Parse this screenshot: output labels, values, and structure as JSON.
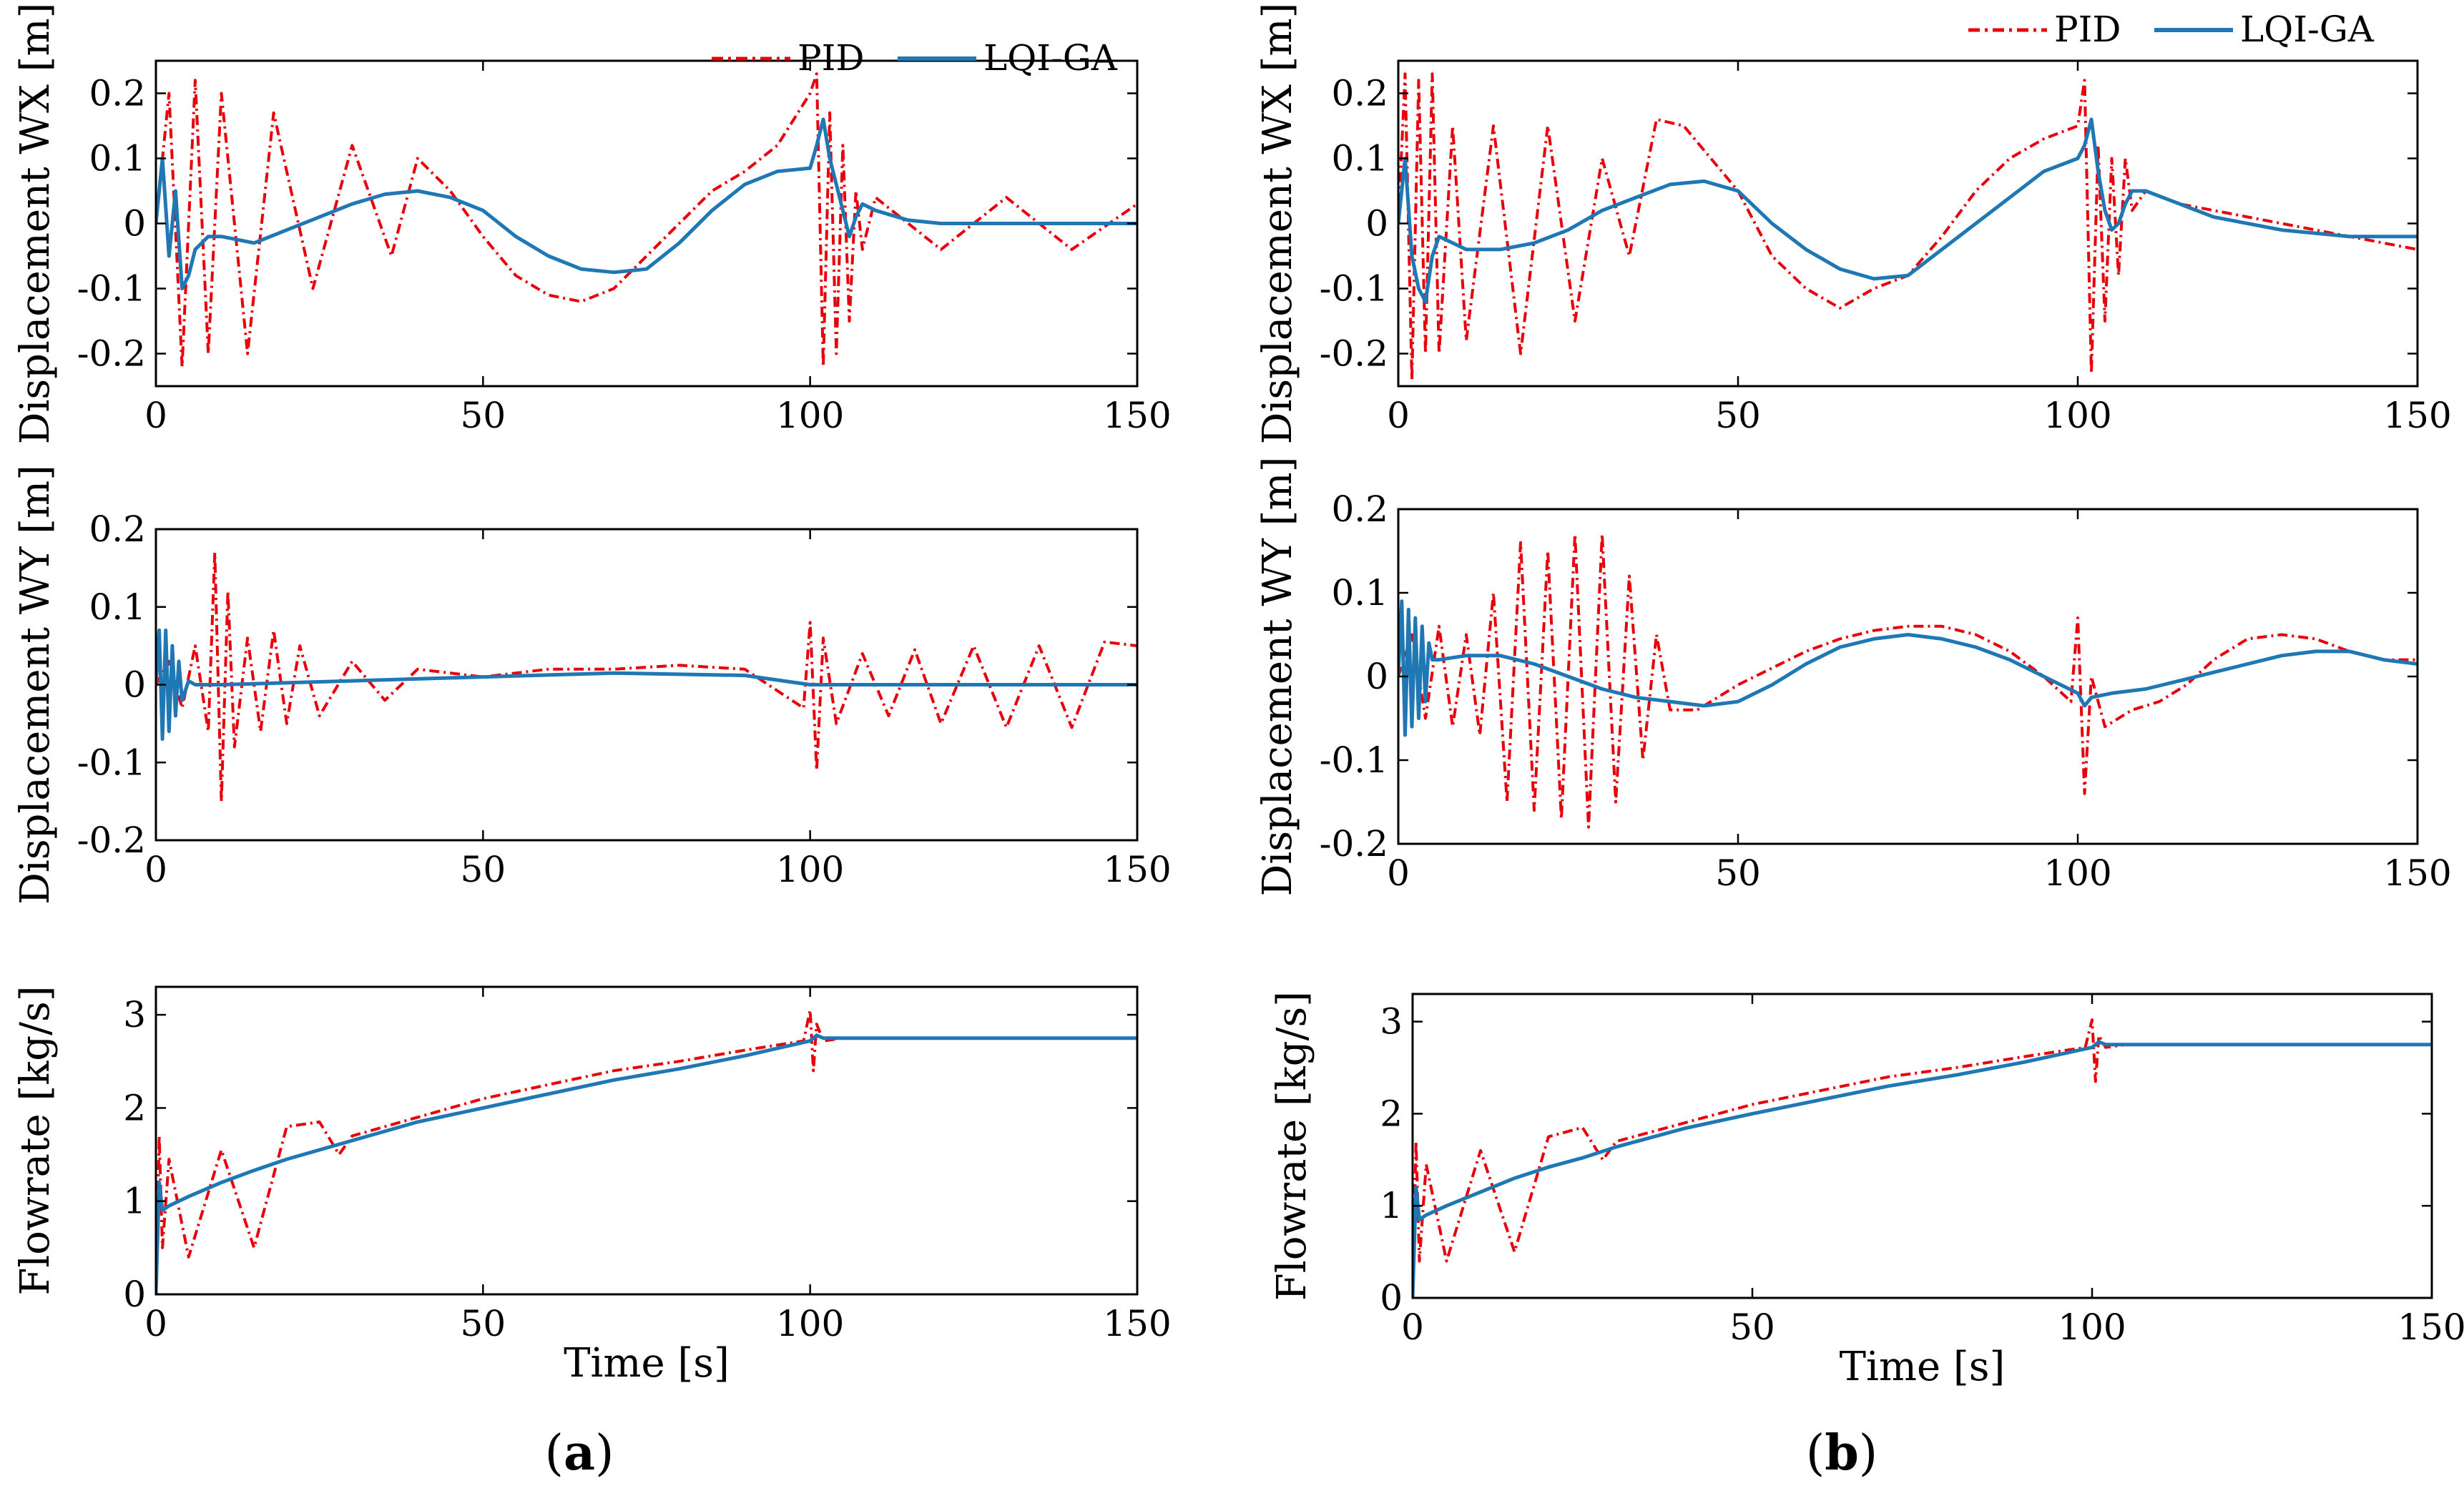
{
  "figure": {
    "panel_labels": [
      {
        "open": "(",
        "letter": "a",
        "close": ")"
      },
      {
        "open": "(",
        "letter": "b",
        "close": ")"
      }
    ],
    "legend": {
      "pid": "PID",
      "lqi": "LQI-GA"
    },
    "colors": {
      "pid": "#e8000b",
      "lqi": "#1f77b4",
      "axes": "#000000"
    }
  },
  "chart_data": [
    {
      "id": "a-wx",
      "type": "line",
      "panel": "a",
      "ylabel": "Displacement WX [m]",
      "xlabel": "",
      "xlim": [
        0,
        150
      ],
      "ylim": [
        -0.25,
        0.25
      ],
      "xticks": [
        "0",
        "50",
        "100",
        "150"
      ],
      "yticks": [
        "-0.2",
        "-0.1",
        "0",
        "0.1",
        "0.2"
      ],
      "series": [
        {
          "name": "PID",
          "style": "dashdot",
          "x": [
            0,
            2,
            4,
            6,
            8,
            10,
            14,
            18,
            24,
            30,
            36,
            40,
            45,
            50,
            55,
            60,
            65,
            70,
            75,
            80,
            85,
            90,
            95,
            100,
            101,
            102,
            103,
            104,
            105,
            106,
            107,
            108,
            110,
            120,
            130,
            140,
            150
          ],
          "y": [
            0,
            0.2,
            -0.22,
            0.22,
            -0.2,
            0.2,
            -0.2,
            0.17,
            -0.1,
            0.12,
            -0.05,
            0.1,
            0.05,
            -0.02,
            -0.08,
            -0.11,
            -0.12,
            -0.1,
            -0.05,
            0,
            0.05,
            0.08,
            0.12,
            0.2,
            0.23,
            -0.22,
            0.17,
            -0.2,
            0.12,
            -0.15,
            0.05,
            -0.04,
            0.04,
            -0.04,
            0.04,
            -0.04,
            0.03
          ]
        },
        {
          "name": "LQI-GA",
          "style": "solid",
          "x": [
            0,
            1,
            2,
            3,
            4,
            5,
            6,
            8,
            10,
            15,
            20,
            25,
            30,
            35,
            40,
            45,
            50,
            55,
            60,
            65,
            70,
            75,
            80,
            85,
            90,
            95,
            100,
            101,
            102,
            103,
            104,
            105,
            106,
            107,
            108,
            110,
            115,
            120,
            130,
            140,
            150
          ],
          "y": [
            0,
            0.1,
            -0.05,
            0.05,
            -0.1,
            -0.08,
            -0.04,
            -0.02,
            -0.02,
            -0.03,
            -0.01,
            0.01,
            0.03,
            0.045,
            0.05,
            0.04,
            0.02,
            -0.02,
            -0.05,
            -0.07,
            -0.075,
            -0.07,
            -0.03,
            0.02,
            0.06,
            0.08,
            0.085,
            0.12,
            0.16,
            0.1,
            0.06,
            0.02,
            -0.02,
            0.01,
            0.03,
            0.02,
            0.005,
            0,
            0,
            0,
            0
          ]
        }
      ]
    },
    {
      "id": "a-wy",
      "type": "line",
      "panel": "a",
      "ylabel": "Displacement WY [m]",
      "xlabel": "",
      "xlim": [
        0,
        150
      ],
      "ylim": [
        -0.2,
        0.2
      ],
      "xticks": [
        "0",
        "50",
        "100",
        "150"
      ],
      "yticks": [
        "-0.2",
        "-0.1",
        "0",
        "0.1",
        "0.2"
      ],
      "series": [
        {
          "name": "PID",
          "style": "dashdot",
          "x": [
            0,
            2,
            4,
            6,
            8,
            9,
            10,
            11,
            12,
            14,
            16,
            18,
            20,
            22,
            25,
            30,
            35,
            40,
            50,
            60,
            70,
            80,
            90,
            99,
            100,
            101,
            102,
            104,
            108,
            112,
            116,
            120,
            125,
            130,
            135,
            140,
            145,
            150
          ],
          "y": [
            0,
            0.03,
            -0.03,
            0.05,
            -0.06,
            0.17,
            -0.15,
            0.12,
            -0.08,
            0.06,
            -0.06,
            0.07,
            -0.05,
            0.05,
            -0.04,
            0.03,
            -0.02,
            0.02,
            0.01,
            0.02,
            0.02,
            0.025,
            0.02,
            -0.03,
            0.08,
            -0.11,
            0.06,
            -0.05,
            0.04,
            -0.04,
            0.045,
            -0.05,
            0.05,
            -0.055,
            0.05,
            -0.055,
            0.055,
            0.05
          ]
        },
        {
          "name": "LQI-GA",
          "style": "solid",
          "x": [
            0,
            0.5,
            1,
            1.5,
            2,
            2.5,
            3,
            3.5,
            4,
            5,
            6,
            10,
            30,
            50,
            70,
            90,
            100,
            105,
            110,
            150
          ],
          "y": [
            0,
            0.07,
            -0.07,
            0.07,
            -0.06,
            0.05,
            -0.04,
            0.03,
            -0.02,
            0.005,
            0,
            0,
            0.005,
            0.01,
            0.015,
            0.012,
            0,
            0,
            0,
            0
          ]
        }
      ]
    },
    {
      "id": "a-flow",
      "type": "line",
      "panel": "a",
      "ylabel": "Flowrate [kg/s]",
      "xlabel": "Time [s]",
      "xlim": [
        0,
        150
      ],
      "ylim": [
        0,
        3.3
      ],
      "xticks": [
        "0",
        "50",
        "100",
        "150"
      ],
      "yticks": [
        "0",
        "1",
        "2",
        "3"
      ],
      "series": [
        {
          "name": "PID",
          "style": "dashdot",
          "x": [
            0,
            0.5,
            1,
            2,
            5,
            10,
            15,
            20,
            25,
            28,
            30,
            35,
            40,
            50,
            60,
            70,
            80,
            90,
            99,
            100,
            100.5,
            101,
            102,
            105,
            110,
            120,
            130,
            140,
            150
          ],
          "y": [
            0,
            1.7,
            0.5,
            1.45,
            0.4,
            1.55,
            0.5,
            1.8,
            1.85,
            1.5,
            1.7,
            1.8,
            1.9,
            2.1,
            2.25,
            2.4,
            2.5,
            2.62,
            2.72,
            3.05,
            2.4,
            2.9,
            2.72,
            2.75,
            2.75,
            2.75,
            2.75,
            2.75,
            2.75
          ]
        },
        {
          "name": "LQI-GA",
          "style": "solid",
          "x": [
            0,
            0.5,
            1,
            2,
            5,
            10,
            15,
            20,
            25,
            30,
            35,
            40,
            50,
            60,
            70,
            80,
            90,
            100,
            101,
            102,
            105,
            110,
            120,
            130,
            140,
            150
          ],
          "y": [
            0,
            1.2,
            0.9,
            0.95,
            1.05,
            1.2,
            1.33,
            1.45,
            1.55,
            1.65,
            1.75,
            1.85,
            2.0,
            2.15,
            2.3,
            2.42,
            2.56,
            2.72,
            2.78,
            2.75,
            2.75,
            2.75,
            2.75,
            2.75,
            2.75,
            2.75
          ]
        }
      ]
    },
    {
      "id": "b-wx",
      "type": "line",
      "panel": "b",
      "ylabel": "Displacement WX [m]",
      "xlabel": "",
      "xlim": [
        0,
        150
      ],
      "ylim": [
        -0.25,
        0.25
      ],
      "xticks": [
        "0",
        "50",
        "100",
        "150"
      ],
      "yticks": [
        "-0.2",
        "-0.1",
        "0",
        "0.1",
        "0.2"
      ],
      "series": [
        {
          "name": "PID",
          "style": "dashdot",
          "x": [
            0,
            1,
            2,
            3,
            4,
            5,
            6,
            8,
            10,
            14,
            18,
            22,
            26,
            30,
            34,
            38,
            42,
            46,
            50,
            55,
            60,
            65,
            70,
            75,
            80,
            85,
            90,
            95,
            100,
            101,
            102,
            103,
            104,
            105,
            106,
            107,
            108,
            110,
            115,
            120,
            130,
            140,
            150
          ],
          "y": [
            0,
            0.23,
            -0.24,
            0.22,
            -0.2,
            0.23,
            -0.2,
            0.15,
            -0.18,
            0.15,
            -0.2,
            0.15,
            -0.15,
            0.1,
            -0.05,
            0.16,
            0.15,
            0.1,
            0.05,
            -0.05,
            -0.1,
            -0.13,
            -0.1,
            -0.08,
            -0.02,
            0.05,
            0.1,
            0.13,
            0.15,
            0.22,
            -0.23,
            0.12,
            -0.15,
            0.1,
            -0.08,
            0.1,
            0.02,
            0.05,
            0.03,
            0.02,
            0,
            -0.02,
            -0.04
          ]
        },
        {
          "name": "LQI-GA",
          "style": "solid",
          "x": [
            0,
            1,
            2,
            3,
            4,
            5,
            6,
            8,
            10,
            15,
            20,
            25,
            30,
            35,
            40,
            45,
            50,
            55,
            60,
            65,
            70,
            75,
            80,
            85,
            90,
            95,
            100,
            101,
            102,
            103,
            104,
            105,
            106,
            107,
            108,
            110,
            115,
            120,
            130,
            140,
            150
          ],
          "y": [
            0,
            0.1,
            -0.05,
            -0.1,
            -0.12,
            -0.05,
            -0.02,
            -0.03,
            -0.04,
            -0.04,
            -0.03,
            -0.01,
            0.02,
            0.04,
            0.06,
            0.065,
            0.05,
            0.0,
            -0.04,
            -0.07,
            -0.085,
            -0.08,
            -0.04,
            0.0,
            0.04,
            0.08,
            0.1,
            0.12,
            0.16,
            0.08,
            0.02,
            -0.01,
            0.0,
            0.03,
            0.05,
            0.05,
            0.03,
            0.01,
            -0.01,
            -0.02,
            -0.02
          ]
        }
      ]
    },
    {
      "id": "b-wy",
      "type": "line",
      "panel": "b",
      "ylabel": "Displacement WY [m]",
      "xlabel": "",
      "xlim": [
        0,
        150
      ],
      "ylim": [
        -0.2,
        0.2
      ],
      "xticks": [
        "0",
        "50",
        "100",
        "150"
      ],
      "yticks": [
        "-0.2",
        "-0.1",
        "0",
        "0.1",
        "0.2"
      ],
      "series": [
        {
          "name": "PID",
          "style": "dashdot",
          "x": [
            0,
            2,
            4,
            6,
            8,
            10,
            12,
            14,
            16,
            18,
            20,
            22,
            24,
            26,
            28,
            30,
            32,
            34,
            36,
            38,
            40,
            44,
            50,
            55,
            60,
            65,
            70,
            75,
            80,
            85,
            90,
            95,
            99,
            100,
            101,
            102,
            104,
            108,
            112,
            116,
            120,
            125,
            130,
            135,
            140,
            145,
            150
          ],
          "y": [
            0,
            0.05,
            -0.05,
            0.06,
            -0.06,
            0.05,
            -0.07,
            0.1,
            -0.15,
            0.16,
            -0.16,
            0.15,
            -0.17,
            0.17,
            -0.18,
            0.17,
            -0.15,
            0.12,
            -0.1,
            0.05,
            -0.04,
            -0.04,
            -0.01,
            0.01,
            0.03,
            0.045,
            0.055,
            0.06,
            0.06,
            0.05,
            0.03,
            0.0,
            -0.03,
            0.07,
            -0.14,
            0.0,
            -0.06,
            -0.04,
            -0.03,
            -0.01,
            0.02,
            0.045,
            0.05,
            0.045,
            0.03,
            0.02,
            0.02
          ]
        },
        {
          "name": "LQI-GA",
          "style": "solid",
          "x": [
            0,
            0.5,
            1,
            1.5,
            2,
            2.5,
            3,
            3.5,
            4,
            4.5,
            5,
            6,
            10,
            15,
            20,
            25,
            30,
            35,
            40,
            45,
            50,
            55,
            60,
            65,
            70,
            75,
            80,
            85,
            90,
            95,
            100,
            101,
            102,
            105,
            110,
            115,
            120,
            125,
            130,
            135,
            140,
            145,
            150
          ],
          "y": [
            0,
            0.09,
            -0.07,
            0.08,
            -0.06,
            0.07,
            -0.05,
            0.06,
            -0.03,
            0.04,
            0.02,
            0.02,
            0.025,
            0.025,
            0.015,
            0.0,
            -0.015,
            -0.025,
            -0.03,
            -0.035,
            -0.03,
            -0.01,
            0.015,
            0.035,
            0.045,
            0.05,
            0.045,
            0.035,
            0.02,
            0.0,
            -0.02,
            -0.035,
            -0.025,
            -0.02,
            -0.015,
            -0.005,
            0.005,
            0.015,
            0.025,
            0.03,
            0.03,
            0.02,
            0.015
          ]
        }
      ]
    },
    {
      "id": "b-flow",
      "type": "line",
      "panel": "b",
      "ylabel": "Flowrate [kg/s]",
      "xlabel": "Time [s]",
      "xlim": [
        0,
        150
      ],
      "ylim": [
        0,
        3.3
      ],
      "xticks": [
        "0",
        "50",
        "100",
        "150"
      ],
      "yticks": [
        "0",
        "1",
        "2",
        "3"
      ],
      "series": [
        {
          "name": "PID",
          "style": "dashdot",
          "x": [
            0,
            0.5,
            1,
            2,
            5,
            10,
            15,
            20,
            25,
            28,
            30,
            35,
            40,
            50,
            60,
            70,
            80,
            90,
            99,
            100,
            100.5,
            101,
            102,
            105,
            110,
            120,
            130,
            140,
            150
          ],
          "y": [
            0,
            1.7,
            0.4,
            1.45,
            0.4,
            1.6,
            0.5,
            1.75,
            1.85,
            1.5,
            1.7,
            1.8,
            1.9,
            2.1,
            2.25,
            2.4,
            2.5,
            2.62,
            2.72,
            3.02,
            2.35,
            2.85,
            2.72,
            2.75,
            2.75,
            2.75,
            2.75,
            2.75,
            2.75
          ]
        },
        {
          "name": "LQI-GA",
          "style": "solid",
          "x": [
            0,
            0.5,
            1,
            2,
            5,
            10,
            15,
            20,
            25,
            30,
            35,
            40,
            50,
            60,
            70,
            80,
            90,
            100,
            101,
            102,
            105,
            110,
            120,
            130,
            140,
            150
          ],
          "y": [
            0,
            1.2,
            0.85,
            0.9,
            1.0,
            1.15,
            1.3,
            1.42,
            1.52,
            1.64,
            1.74,
            1.84,
            2.0,
            2.15,
            2.3,
            2.42,
            2.56,
            2.72,
            2.78,
            2.75,
            2.75,
            2.75,
            2.75,
            2.75,
            2.75,
            2.75
          ]
        }
      ]
    }
  ]
}
